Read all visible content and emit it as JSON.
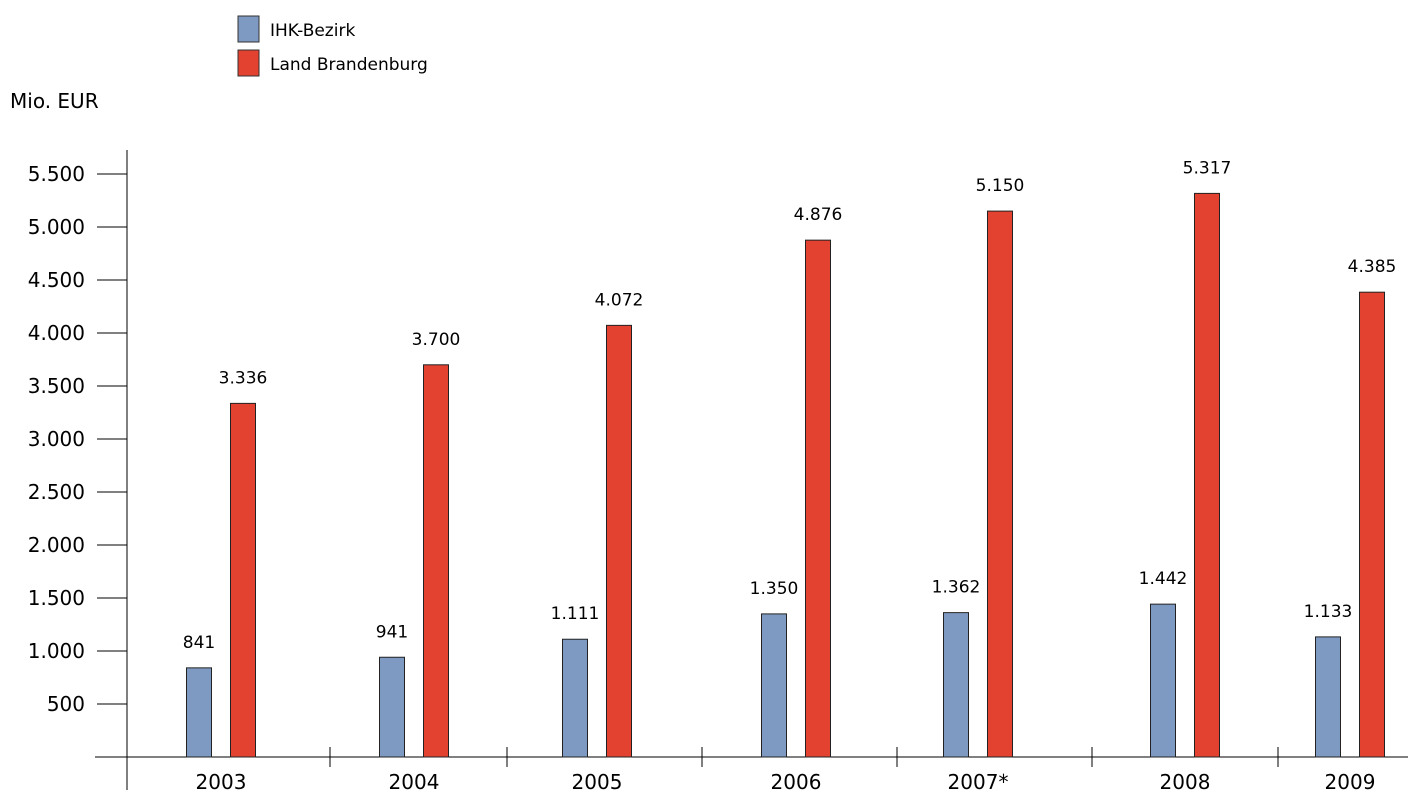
{
  "chart_data": {
    "type": "bar",
    "title": "",
    "xlabel": "",
    "ylabel": "Mio. EUR",
    "categories": [
      "2003",
      "2004",
      "2005",
      "2006",
      "2007*",
      "2008",
      "2009"
    ],
    "series": [
      {
        "name": "IHK-Bezirk",
        "color": "#7f9ac2",
        "values": [
          841,
          941,
          1111,
          1350,
          1362,
          1442,
          1133
        ],
        "labels": [
          "841",
          "941",
          "1.111",
          "1.350",
          "1.362",
          "1.442",
          "1.133"
        ]
      },
      {
        "name": "Land Brandenburg",
        "color": "#e34230",
        "values": [
          3336,
          3700,
          4072,
          4876,
          5150,
          5317,
          4385
        ],
        "labels": [
          "3.336",
          "3.700",
          "4.072",
          "4.876",
          "5.150",
          "5.317",
          "4.385"
        ]
      }
    ],
    "yticks": [
      500,
      1000,
      1500,
      2000,
      2500,
      3000,
      3500,
      4000,
      4500,
      5000,
      5500
    ],
    "ytick_labels": [
      "500",
      "1.000",
      "1.500",
      "2.000",
      "2.500",
      "3.000",
      "3.500",
      "4.000",
      "4.500",
      "5.000",
      "5.500"
    ],
    "ylim": [
      0,
      5500
    ],
    "grid": false,
    "legend_position": "top-left"
  }
}
